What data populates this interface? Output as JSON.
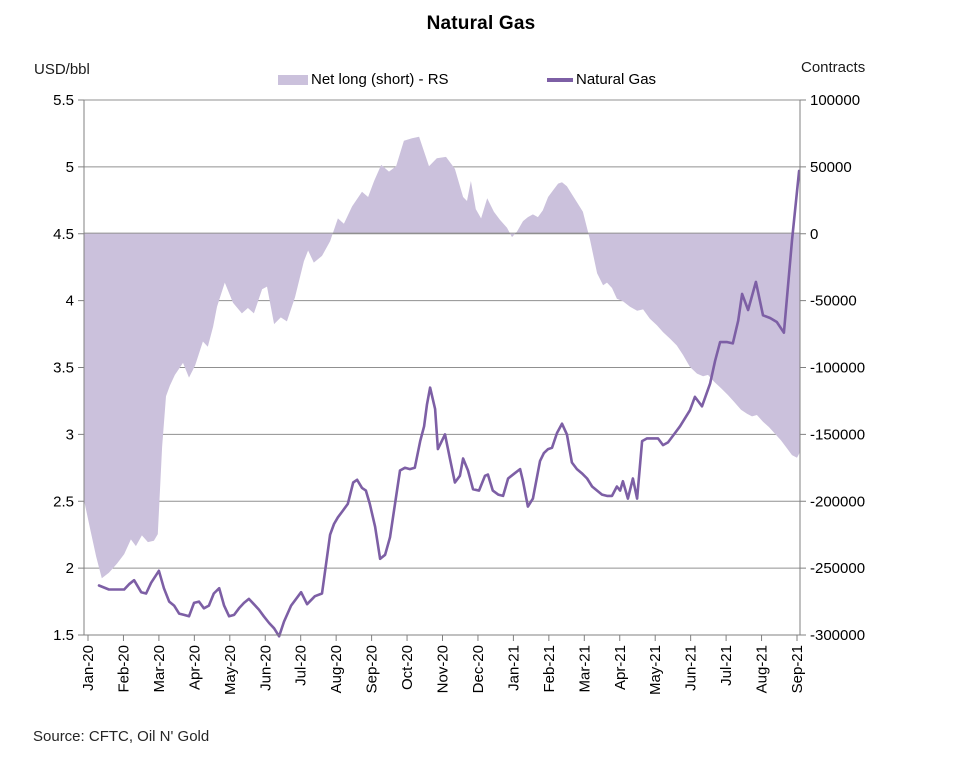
{
  "chart_data": {
    "type": "combo",
    "title": "Natural Gas",
    "source": "Source: CFTC, Oil N' Gold",
    "legend": [
      {
        "label": "Net long (short) - RS",
        "swatch": "area-swatch"
      },
      {
        "label": "Natural Gas",
        "swatch": "line-swatch"
      }
    ],
    "colors": {
      "area": "#CBC1DC",
      "line": "#7D5FA5",
      "grid": "#909090",
      "axis": "#808080",
      "text": "#000000"
    },
    "left_axis": {
      "label": "USD/bbl",
      "min": 1.5,
      "max": 5.5,
      "step": 0.5,
      "tick_labels": [
        "5.5",
        "5",
        "4.5",
        "4",
        "3.5",
        "3",
        "2.5",
        "2",
        "1.5"
      ]
    },
    "right_axis": {
      "label": "Contracts",
      "min": -300000,
      "max": 100000,
      "step": 50000,
      "tick_labels": [
        "100000",
        "50000",
        "0",
        "-50000",
        "-100000",
        "-150000",
        "-200000",
        "-250000",
        "-300000"
      ]
    },
    "x_axis": {
      "unit": "month",
      "tick_labels": [
        "Jan-20",
        "Feb-20",
        "Mar-20",
        "Apr-20",
        "May-20",
        "Jun-20",
        "Jul-20",
        "Aug-20",
        "Sep-20",
        "Oct-20",
        "Nov-20",
        "Dec-20",
        "Jan-21",
        "Feb-21",
        "Mar-21",
        "Apr-21",
        "May-21",
        "Jun-21",
        "Jul-21",
        "Aug-21",
        "Sep-21"
      ]
    },
    "series": [
      {
        "name": "Net long (short) - RS",
        "type": "area",
        "axis": "right",
        "unit": "contracts",
        "x_unit": "months_since_Jan-20",
        "points": [
          [
            -0.11,
            -200000
          ],
          [
            0.06,
            -221000
          ],
          [
            0.23,
            -242000
          ],
          [
            0.39,
            -258000
          ],
          [
            0.59,
            -254000
          ],
          [
            0.82,
            -247000
          ],
          [
            1.02,
            -240000
          ],
          [
            1.21,
            -229000
          ],
          [
            1.35,
            -234000
          ],
          [
            1.52,
            -226000
          ],
          [
            1.69,
            -231000
          ],
          [
            1.86,
            -230000
          ],
          [
            1.97,
            -225000
          ],
          [
            2.09,
            -160000
          ],
          [
            2.2,
            -122000
          ],
          [
            2.31,
            -114000
          ],
          [
            2.45,
            -106000
          ],
          [
            2.68,
            -97000
          ],
          [
            2.85,
            -108000
          ],
          [
            3.02,
            -99000
          ],
          [
            3.24,
            -81000
          ],
          [
            3.38,
            -85000
          ],
          [
            3.53,
            -70000
          ],
          [
            3.64,
            -55000
          ],
          [
            3.86,
            -37000
          ],
          [
            4.09,
            -52000
          ],
          [
            4.34,
            -60000
          ],
          [
            4.51,
            -56000
          ],
          [
            4.68,
            -60000
          ],
          [
            4.91,
            -42000
          ],
          [
            5.05,
            -40000
          ],
          [
            5.25,
            -68000
          ],
          [
            5.44,
            -63000
          ],
          [
            5.61,
            -66000
          ],
          [
            5.84,
            -48000
          ],
          [
            6.09,
            -21000
          ],
          [
            6.21,
            -13000
          ],
          [
            6.37,
            -22000
          ],
          [
            6.6,
            -17000
          ],
          [
            6.83,
            -6000
          ],
          [
            7.05,
            11000
          ],
          [
            7.22,
            7000
          ],
          [
            7.45,
            20000
          ],
          [
            7.73,
            31000
          ],
          [
            7.9,
            27000
          ],
          [
            8.07,
            39000
          ],
          [
            8.27,
            51000
          ],
          [
            8.49,
            46000
          ],
          [
            8.69,
            50000
          ],
          [
            8.91,
            69000
          ],
          [
            9.14,
            71000
          ],
          [
            9.34,
            72000
          ],
          [
            9.62,
            50000
          ],
          [
            9.84,
            56000
          ],
          [
            10.1,
            57000
          ],
          [
            10.35,
            48000
          ],
          [
            10.58,
            27000
          ],
          [
            10.69,
            24000
          ],
          [
            10.8,
            39000
          ],
          [
            10.94,
            18000
          ],
          [
            11.09,
            11000
          ],
          [
            11.26,
            26000
          ],
          [
            11.45,
            16000
          ],
          [
            11.62,
            10000
          ],
          [
            11.82,
            4000
          ],
          [
            11.96,
            -3000
          ],
          [
            12.1,
            1000
          ],
          [
            12.27,
            9000
          ],
          [
            12.41,
            12000
          ],
          [
            12.55,
            14000
          ],
          [
            12.69,
            12000
          ],
          [
            12.83,
            17000
          ],
          [
            12.98,
            27000
          ],
          [
            13.12,
            32000
          ],
          [
            13.26,
            37000
          ],
          [
            13.37,
            38000
          ],
          [
            13.51,
            35000
          ],
          [
            13.65,
            29000
          ],
          [
            13.82,
            22000
          ],
          [
            13.96,
            16000
          ],
          [
            14.16,
            -5000
          ],
          [
            14.36,
            -30000
          ],
          [
            14.53,
            -39000
          ],
          [
            14.64,
            -37000
          ],
          [
            14.78,
            -41000
          ],
          [
            14.92,
            -49000
          ],
          [
            15.09,
            -51000
          ],
          [
            15.29,
            -55000
          ],
          [
            15.49,
            -58000
          ],
          [
            15.66,
            -57000
          ],
          [
            15.85,
            -64000
          ],
          [
            16.05,
            -69000
          ],
          [
            16.22,
            -74000
          ],
          [
            16.42,
            -79000
          ],
          [
            16.61,
            -84000
          ],
          [
            16.78,
            -91000
          ],
          [
            16.98,
            -100000
          ],
          [
            17.18,
            -105000
          ],
          [
            17.35,
            -107000
          ],
          [
            17.49,
            -106000
          ],
          [
            17.66,
            -111000
          ],
          [
            17.86,
            -116000
          ],
          [
            18.05,
            -121000
          ],
          [
            18.22,
            -126000
          ],
          [
            18.42,
            -132000
          ],
          [
            18.59,
            -135000
          ],
          [
            18.73,
            -137000
          ],
          [
            18.87,
            -136000
          ],
          [
            19.04,
            -141000
          ],
          [
            19.21,
            -145000
          ],
          [
            19.38,
            -150000
          ],
          [
            19.55,
            -155000
          ],
          [
            19.72,
            -161000
          ],
          [
            19.86,
            -166000
          ],
          [
            20.0,
            -168000
          ],
          [
            20.08,
            -164000
          ]
        ]
      },
      {
        "name": "Natural Gas",
        "type": "line",
        "axis": "left",
        "unit": "USD/bbl",
        "x_unit": "months_since_Jan-20",
        "points": [
          [
            0.31,
            1.87
          ],
          [
            0.59,
            1.84
          ],
          [
            0.87,
            1.84
          ],
          [
            1.02,
            1.84
          ],
          [
            1.16,
            1.88
          ],
          [
            1.3,
            1.91
          ],
          [
            1.5,
            1.82
          ],
          [
            1.64,
            1.81
          ],
          [
            1.78,
            1.89
          ],
          [
            2.0,
            1.98
          ],
          [
            2.14,
            1.85
          ],
          [
            2.29,
            1.75
          ],
          [
            2.43,
            1.72
          ],
          [
            2.57,
            1.66
          ],
          [
            2.71,
            1.65
          ],
          [
            2.85,
            1.64
          ],
          [
            2.99,
            1.74
          ],
          [
            3.13,
            1.75
          ],
          [
            3.27,
            1.7
          ],
          [
            3.41,
            1.72
          ],
          [
            3.55,
            1.81
          ],
          [
            3.7,
            1.85
          ],
          [
            3.84,
            1.72
          ],
          [
            3.98,
            1.64
          ],
          [
            4.12,
            1.65
          ],
          [
            4.26,
            1.7
          ],
          [
            4.4,
            1.74
          ],
          [
            4.54,
            1.77
          ],
          [
            4.68,
            1.73
          ],
          [
            4.82,
            1.69
          ],
          [
            4.96,
            1.64
          ],
          [
            5.11,
            1.59
          ],
          [
            5.25,
            1.55
          ],
          [
            5.39,
            1.49
          ],
          [
            5.53,
            1.6
          ],
          [
            5.73,
            1.72
          ],
          [
            6.01,
            1.82
          ],
          [
            6.18,
            1.73
          ],
          [
            6.4,
            1.79
          ],
          [
            6.6,
            1.81
          ],
          [
            6.83,
            2.25
          ],
          [
            6.94,
            2.33
          ],
          [
            7.05,
            2.38
          ],
          [
            7.19,
            2.43
          ],
          [
            7.33,
            2.48
          ],
          [
            7.48,
            2.64
          ],
          [
            7.59,
            2.66
          ],
          [
            7.73,
            2.6
          ],
          [
            7.84,
            2.58
          ],
          [
            7.95,
            2.48
          ],
          [
            8.1,
            2.31
          ],
          [
            8.24,
            2.07
          ],
          [
            8.38,
            2.1
          ],
          [
            8.52,
            2.23
          ],
          [
            8.66,
            2.48
          ],
          [
            8.8,
            2.73
          ],
          [
            8.94,
            2.75
          ],
          [
            9.08,
            2.74
          ],
          [
            9.22,
            2.75
          ],
          [
            9.37,
            2.95
          ],
          [
            9.48,
            3.06
          ],
          [
            9.56,
            3.22
          ],
          [
            9.65,
            3.35
          ],
          [
            9.79,
            3.19
          ],
          [
            9.87,
            2.89
          ],
          [
            10.07,
            3.0
          ],
          [
            10.21,
            2.82
          ],
          [
            10.35,
            2.64
          ],
          [
            10.49,
            2.69
          ],
          [
            10.58,
            2.82
          ],
          [
            10.72,
            2.73
          ],
          [
            10.86,
            2.59
          ],
          [
            11.03,
            2.58
          ],
          [
            11.2,
            2.69
          ],
          [
            11.28,
            2.7
          ],
          [
            11.42,
            2.58
          ],
          [
            11.57,
            2.55
          ],
          [
            11.71,
            2.54
          ],
          [
            11.85,
            2.67
          ],
          [
            12.04,
            2.71
          ],
          [
            12.19,
            2.74
          ],
          [
            12.27,
            2.65
          ],
          [
            12.41,
            2.46
          ],
          [
            12.55,
            2.52
          ],
          [
            12.75,
            2.8
          ],
          [
            12.86,
            2.86
          ],
          [
            12.98,
            2.89
          ],
          [
            13.09,
            2.9
          ],
          [
            13.23,
            3.01
          ],
          [
            13.37,
            3.08
          ],
          [
            13.51,
            3.0
          ],
          [
            13.65,
            2.79
          ],
          [
            13.79,
            2.74
          ],
          [
            13.93,
            2.71
          ],
          [
            14.08,
            2.67
          ],
          [
            14.22,
            2.61
          ],
          [
            14.36,
            2.58
          ],
          [
            14.5,
            2.55
          ],
          [
            14.64,
            2.54
          ],
          [
            14.78,
            2.54
          ],
          [
            14.92,
            2.61
          ],
          [
            15.01,
            2.58
          ],
          [
            15.09,
            2.65
          ],
          [
            15.23,
            2.52
          ],
          [
            15.37,
            2.67
          ],
          [
            15.49,
            2.52
          ],
          [
            15.63,
            2.95
          ],
          [
            15.77,
            2.97
          ],
          [
            15.94,
            2.97
          ],
          [
            16.08,
            2.97
          ],
          [
            16.22,
            2.92
          ],
          [
            16.36,
            2.94
          ],
          [
            16.53,
            3.0
          ],
          [
            16.7,
            3.06
          ],
          [
            16.98,
            3.18
          ],
          [
            17.12,
            3.28
          ],
          [
            17.32,
            3.21
          ],
          [
            17.55,
            3.38
          ],
          [
            17.69,
            3.55
          ],
          [
            17.83,
            3.69
          ],
          [
            18.03,
            3.69
          ],
          [
            18.19,
            3.68
          ],
          [
            18.34,
            3.85
          ],
          [
            18.45,
            4.05
          ],
          [
            18.62,
            3.93
          ],
          [
            18.84,
            4.14
          ],
          [
            19.04,
            3.89
          ],
          [
            19.24,
            3.87
          ],
          [
            19.43,
            3.84
          ],
          [
            19.63,
            3.76
          ],
          [
            19.86,
            4.45
          ],
          [
            20.06,
            4.97
          ]
        ]
      }
    ]
  }
}
